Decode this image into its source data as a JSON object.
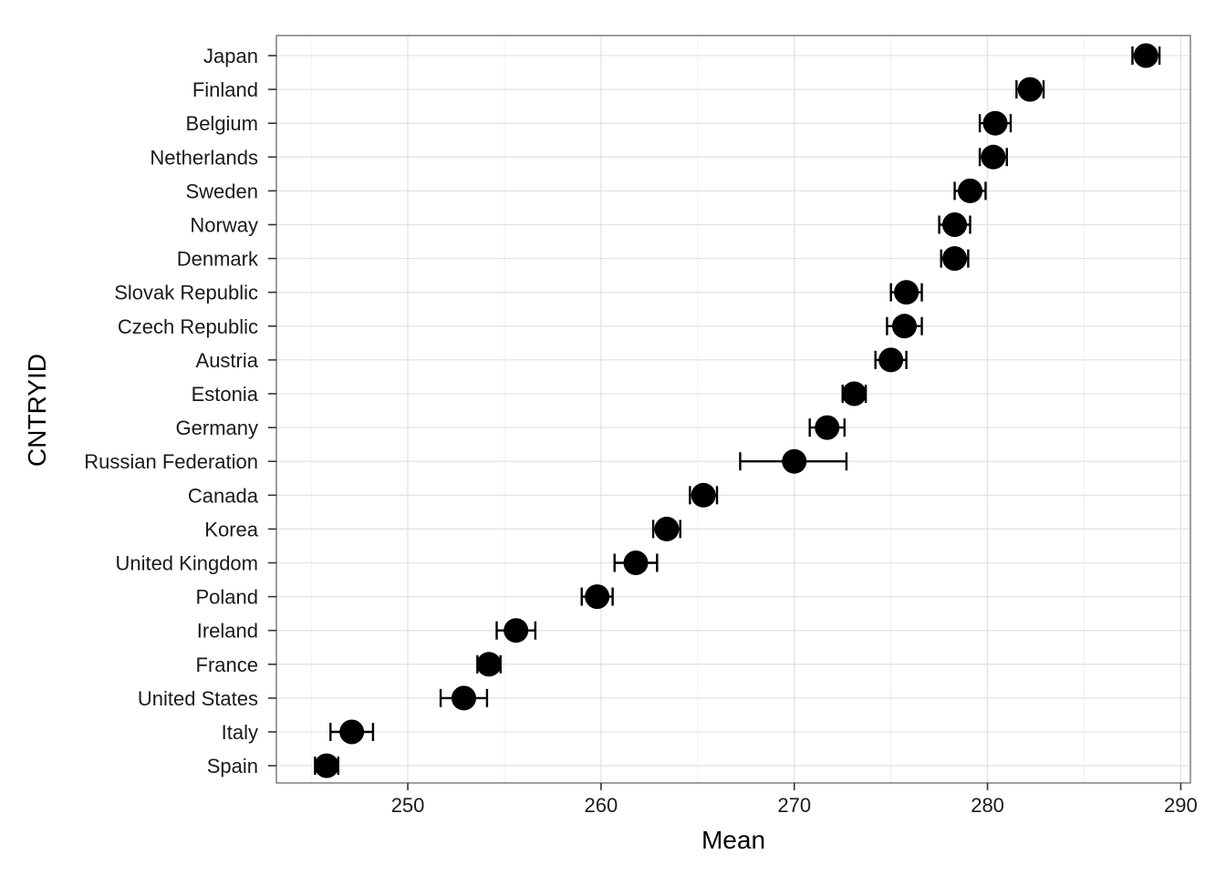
{
  "chart_data": {
    "type": "scatter",
    "xlabel": "Mean",
    "ylabel": "CNTRYID",
    "xlim": [
      243.2,
      290.5
    ],
    "xticks": [
      250,
      260,
      270,
      280,
      290
    ],
    "grid": true,
    "categories": [
      "Japan",
      "Finland",
      "Belgium",
      "Netherlands",
      "Sweden",
      "Norway",
      "Denmark",
      "Slovak Republic",
      "Czech Republic",
      "Austria",
      "Estonia",
      "Germany",
      "Russian Federation",
      "Canada",
      "Korea",
      "United Kingdom",
      "Poland",
      "Ireland",
      "France",
      "United States",
      "Italy",
      "Spain"
    ],
    "points": [
      {
        "country": "Japan",
        "mean": 288.2,
        "low": 287.5,
        "high": 288.9
      },
      {
        "country": "Finland",
        "mean": 282.2,
        "low": 281.5,
        "high": 282.9
      },
      {
        "country": "Belgium",
        "mean": 280.4,
        "low": 279.6,
        "high": 281.2
      },
      {
        "country": "Netherlands",
        "mean": 280.3,
        "low": 279.6,
        "high": 281.0
      },
      {
        "country": "Sweden",
        "mean": 279.1,
        "low": 278.3,
        "high": 279.9
      },
      {
        "country": "Norway",
        "mean": 278.3,
        "low": 277.5,
        "high": 279.1
      },
      {
        "country": "Denmark",
        "mean": 278.3,
        "low": 277.6,
        "high": 279.0
      },
      {
        "country": "Slovak Republic",
        "mean": 275.8,
        "low": 275.0,
        "high": 276.6
      },
      {
        "country": "Czech Republic",
        "mean": 275.7,
        "low": 274.8,
        "high": 276.6
      },
      {
        "country": "Austria",
        "mean": 275.0,
        "low": 274.2,
        "high": 275.8
      },
      {
        "country": "Estonia",
        "mean": 273.1,
        "low": 272.5,
        "high": 273.7
      },
      {
        "country": "Germany",
        "mean": 271.7,
        "low": 270.8,
        "high": 272.6
      },
      {
        "country": "Russian Federation",
        "mean": 270.0,
        "low": 267.2,
        "high": 272.7
      },
      {
        "country": "Canada",
        "mean": 265.3,
        "low": 264.6,
        "high": 266.0
      },
      {
        "country": "Korea",
        "mean": 263.4,
        "low": 262.7,
        "high": 264.1
      },
      {
        "country": "United Kingdom",
        "mean": 261.8,
        "low": 260.7,
        "high": 262.9
      },
      {
        "country": "Poland",
        "mean": 259.8,
        "low": 259.0,
        "high": 260.6
      },
      {
        "country": "Ireland",
        "mean": 255.6,
        "low": 254.6,
        "high": 256.6
      },
      {
        "country": "France",
        "mean": 254.2,
        "low": 253.6,
        "high": 254.8
      },
      {
        "country": "United States",
        "mean": 252.9,
        "low": 251.7,
        "high": 254.1
      },
      {
        "country": "Italy",
        "mean": 247.1,
        "low": 246.0,
        "high": 248.2
      },
      {
        "country": "Spain",
        "mean": 245.8,
        "low": 245.2,
        "high": 246.4
      }
    ]
  }
}
